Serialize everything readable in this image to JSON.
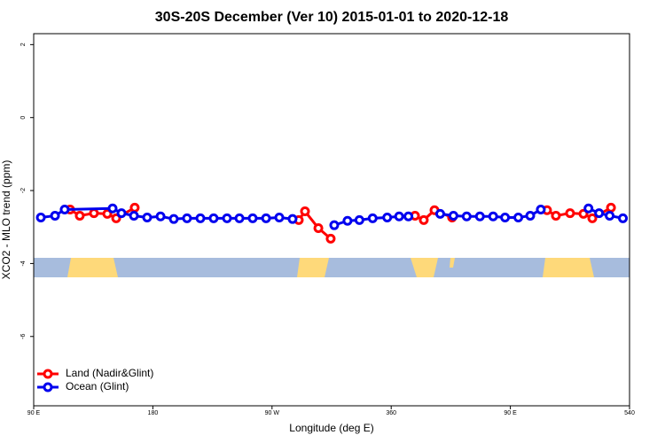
{
  "chart_data": {
    "type": "line",
    "title": "30S-20S December (Ver 10)   2015-01-01 to 2020-12-18",
    "x_label": "Longitude (deg E)",
    "y_label": "XCO2 - MLO trend (ppm)",
    "xlim": [
      90,
      540
    ],
    "ylim": [
      -7.9,
      2.3
    ],
    "xticks": [
      {
        "value": 90,
        "label": "90 E"
      },
      180,
      {
        "value": 270,
        "label": "90 W"
      },
      360,
      {
        "value": 450,
        "label": "90 E"
      },
      540
    ],
    "yticks": [
      -6,
      -4,
      -2,
      0,
      2
    ],
    "legend": "bottom-left",
    "series": [
      {
        "name": "Land (Nadir&Glint)",
        "color": "#ff0000",
        "x": [
          117.5,
          124.8,
          135.5,
          145.6,
          152.3,
          166.3,
          null,
          290.2,
          294.9,
          305,
          314.3,
          null,
          378,
          384.6,
          392.7,
          406,
          null,
          477.7,
          484.4,
          495.1,
          505.2,
          511.9,
          526
        ],
        "values": [
          -2.52,
          -2.69,
          -2.62,
          -2.64,
          -2.76,
          -2.47,
          null,
          -2.81,
          -2.57,
          -3.03,
          -3.32,
          null,
          -2.69,
          -2.81,
          -2.54,
          -2.74,
          null,
          -2.54,
          -2.69,
          -2.62,
          -2.64,
          -2.76,
          -2.47
        ]
      },
      {
        "name": "Ocean (Glint)",
        "color": "#0000ee",
        "x": [
          95.4,
          106.1,
          113.4,
          149.6,
          156.3,
          165.7,
          175.7,
          185.8,
          195.8,
          205.8,
          215.9,
          225.9,
          236,
          245.4,
          255.4,
          265.5,
          275.5,
          285.5,
          null,
          317,
          327,
          336,
          346,
          357,
          366,
          373,
          null,
          397,
          407,
          417,
          427,
          437,
          446,
          456,
          465,
          473,
          null,
          509,
          517,
          525,
          535
        ],
        "values": [
          -2.74,
          -2.69,
          -2.52,
          -2.49,
          -2.62,
          -2.69,
          -2.74,
          -2.71,
          -2.78,
          -2.76,
          -2.76,
          -2.76,
          -2.76,
          -2.76,
          -2.76,
          -2.76,
          -2.74,
          -2.78,
          null,
          -2.95,
          -2.83,
          -2.81,
          -2.76,
          -2.74,
          -2.71,
          -2.71,
          null,
          -2.64,
          -2.69,
          -2.71,
          -2.71,
          -2.71,
          -2.74,
          -2.74,
          -2.69,
          -2.52,
          null,
          -2.49,
          -2.62,
          -2.69,
          -2.76
        ]
      }
    ]
  }
}
